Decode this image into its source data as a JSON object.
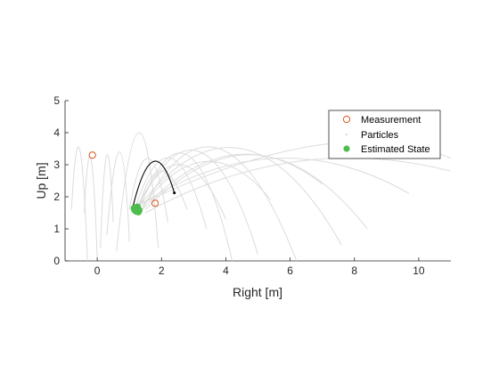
{
  "chart_data": {
    "type": "scatter",
    "title": "",
    "xlabel": "Right [m]",
    "ylabel": "Up [m]",
    "xlim": [
      -1,
      11
    ],
    "ylim": [
      0,
      5
    ],
    "xticks": [
      0,
      2,
      4,
      6,
      8,
      10
    ],
    "yticks": [
      0,
      1,
      2,
      3,
      4,
      5
    ],
    "grid": false,
    "legend_position": "top-right",
    "legend": [
      "Measurement",
      "Particles",
      "Estimated State"
    ],
    "series": [
      {
        "name": "Measurement",
        "marker": "open-circle",
        "color": "#D95319",
        "points": [
          [
            -0.15,
            3.3
          ],
          [
            1.8,
            1.8
          ]
        ]
      },
      {
        "name": "Particles",
        "marker": "trajectory",
        "color": "#DCDCDC",
        "trajectories": [
          [
            [
              -0.8,
              1.6
            ],
            [
              -0.55,
              3.5
            ],
            [
              -0.3,
              0.0
            ]
          ],
          [
            [
              -0.4,
              1.5
            ],
            [
              -0.2,
              3.2
            ],
            [
              0.0,
              0.1
            ]
          ],
          [
            [
              0.1,
              0.4
            ],
            [
              0.3,
              3.3
            ],
            [
              0.5,
              1.2
            ]
          ],
          [
            [
              0.3,
              0.8
            ],
            [
              0.7,
              3.4
            ],
            [
              1.0,
              0.6
            ]
          ],
          [
            [
              0.6,
              0.3
            ],
            [
              1.3,
              4.0
            ],
            [
              1.9,
              0.4
            ]
          ],
          [
            [
              1.0,
              1.6
            ],
            [
              1.6,
              3.2
            ],
            [
              2.2,
              1.2
            ]
          ],
          [
            [
              1.2,
              1.7
            ],
            [
              2.3,
              3.2
            ],
            [
              3.4,
              1.0
            ]
          ],
          [
            [
              1.3,
              1.6
            ],
            [
              2.8,
              3.3
            ],
            [
              4.2,
              0.0
            ]
          ],
          [
            [
              1.3,
              1.7
            ],
            [
              3.2,
              3.4
            ],
            [
              5.0,
              0.2
            ]
          ],
          [
            [
              1.4,
              1.6
            ],
            [
              3.8,
              3.5
            ],
            [
              6.2,
              0.0
            ]
          ],
          [
            [
              1.3,
              1.7
            ],
            [
              4.5,
              3.5
            ],
            [
              7.6,
              0.5
            ]
          ],
          [
            [
              1.5,
              1.6
            ],
            [
              5.0,
              3.3
            ],
            [
              8.4,
              1.0
            ]
          ],
          [
            [
              1.4,
              1.8
            ],
            [
              5.6,
              3.2
            ],
            [
              9.7,
              2.1
            ]
          ],
          [
            [
              1.5,
              1.5
            ],
            [
              6.2,
              3.1
            ],
            [
              11.0,
              2.8
            ]
          ],
          [
            [
              1.3,
              1.7
            ],
            [
              2.0,
              2.8
            ],
            [
              2.8,
              1.6
            ]
          ],
          [
            [
              1.2,
              1.6
            ],
            [
              2.6,
              3.0
            ],
            [
              4.0,
              1.3
            ]
          ],
          [
            [
              1.4,
              1.7
            ],
            [
              3.4,
              3.1
            ],
            [
              5.4,
              1.9
            ]
          ],
          [
            [
              1.4,
              1.6
            ],
            [
              4.2,
              3.3
            ],
            [
              7.0,
              2.4
            ]
          ],
          [
            [
              1.2,
              1.7
            ],
            [
              6.8,
              3.6
            ],
            [
              11.0,
              3.2
            ]
          ]
        ]
      },
      {
        "name": "Estimated State",
        "marker": "filled-circle",
        "color": "#4DBD4D",
        "points": [
          [
            1.17,
            1.59
          ],
          [
            1.2,
            1.66
          ],
          [
            1.23,
            1.56
          ],
          [
            1.27,
            1.62
          ],
          [
            1.21,
            1.55
          ],
          [
            1.25,
            1.68
          ],
          [
            1.3,
            1.58
          ],
          [
            1.15,
            1.64
          ],
          [
            1.28,
            1.53
          ]
        ],
        "predicted_path": [
          [
            1.1,
            1.65
          ],
          [
            1.75,
            3.1
          ],
          [
            2.4,
            2.12
          ]
        ]
      }
    ]
  }
}
